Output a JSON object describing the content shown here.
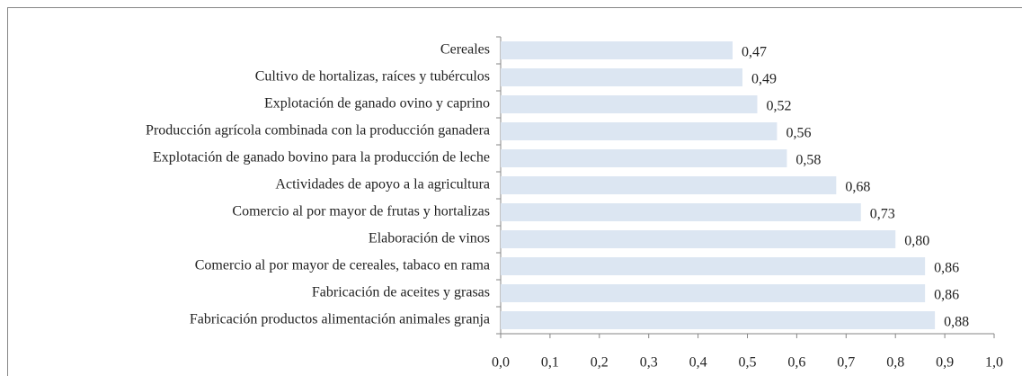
{
  "chart_data": {
    "type": "hbar",
    "categories": [
      "Cereales",
      "Cultivo de hortalizas, raíces y tubérculos",
      "Explotación de ganado ovino y caprino",
      "Producción agrícola combinada con la producción ganadera",
      "Explotación de ganado bovino para la producción de leche",
      "Actividades de apoyo a la agricultura",
      "Comercio al por mayor de frutas y hortalizas",
      "Elaboración de vinos",
      "Comercio al por mayor de cereales, tabaco en rama",
      "Fabricación de aceites y grasas",
      "Fabricación productos alimentación  animales granja"
    ],
    "values": [
      0.47,
      0.49,
      0.52,
      0.56,
      0.58,
      0.68,
      0.73,
      0.8,
      0.86,
      0.86,
      0.88
    ],
    "value_labels": [
      "0,47",
      "0,49",
      "0,52",
      "0,56",
      "0,58",
      "0,68",
      "0,73",
      "0,80",
      "0,86",
      "0,86",
      "0,88"
    ],
    "color": "#dce6f2",
    "xlim": [
      0,
      1
    ],
    "xticks": [
      {
        "value": 0,
        "label": "0,0"
      },
      {
        "value": 0.1,
        "label": "0,1"
      },
      {
        "value": 0.2,
        "label": "0,2"
      },
      {
        "value": 0.3,
        "label": "0,3"
      },
      {
        "value": 0.4,
        "label": "0,4"
      },
      {
        "value": 0.5,
        "label": "0,5"
      },
      {
        "value": 0.6,
        "label": "0,6"
      },
      {
        "value": 0.7,
        "label": "0,7"
      },
      {
        "value": 0.8,
        "label": "0,8"
      },
      {
        "value": 0.9,
        "label": "0,9"
      },
      {
        "value": 1,
        "label": "1,0"
      }
    ]
  }
}
